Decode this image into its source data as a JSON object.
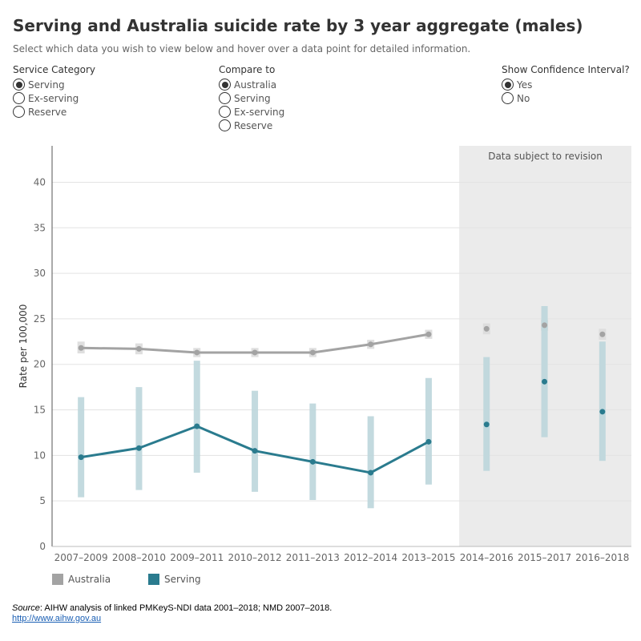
{
  "header": {
    "title": "Serving and Australia suicide rate by 3 year aggregate (males)",
    "subtitle": "Select which data you wish to view below and hover over a data point for detailed information."
  },
  "controls": {
    "service_category": {
      "label": "Service Category",
      "options": [
        {
          "label": "Serving",
          "selected": true
        },
        {
          "label": "Ex-serving",
          "selected": false
        },
        {
          "label": "Reserve",
          "selected": false
        }
      ]
    },
    "compare_to": {
      "label": "Compare to",
      "options": [
        {
          "label": "Australia",
          "selected": true
        },
        {
          "label": "Serving",
          "selected": false
        },
        {
          "label": "Ex-serving",
          "selected": false
        },
        {
          "label": "Reserve",
          "selected": false
        }
      ]
    },
    "confidence_interval": {
      "label": "Show Confidence Interval?",
      "options": [
        {
          "label": "Yes",
          "selected": true
        },
        {
          "label": "No",
          "selected": false
        }
      ]
    }
  },
  "legend": {
    "australia": "Australia",
    "serving": "Serving"
  },
  "colors": {
    "australia": "#a3a3a3",
    "australia_ci": "#dcdcdc",
    "serving": "#2a7b8e",
    "serving_ci": "#bcd6dc",
    "revision_bg": "#ebebeb"
  },
  "source": {
    "label": "Source",
    "text": ": AIHW analysis of linked PMKeyS-NDI data 2001–2018; NMD 2007–2018.",
    "link": "http://www.aihw.gov.au"
  },
  "chart_data": {
    "type": "line",
    "ylabel": "Rate per 100,000",
    "ylim": [
      0,
      44
    ],
    "yticks": [
      0,
      5,
      10,
      15,
      20,
      25,
      30,
      35,
      40
    ],
    "categories": [
      "2007–2009",
      "2008–2010",
      "2009–2011",
      "2010–2012",
      "2011–2013",
      "2012–2014",
      "2013–2015",
      "2014–2016",
      "2015–2017",
      "2016–2018"
    ],
    "revision_annotation": "Data subject to revision",
    "revision_start_category": "2014–2016",
    "series": [
      {
        "name": "Australia",
        "values": [
          21.8,
          21.7,
          21.3,
          21.3,
          21.3,
          22.2,
          23.3,
          23.9,
          24.3,
          23.3
        ],
        "ci_low": [
          21.2,
          21.1,
          20.8,
          20.8,
          20.8,
          21.7,
          22.8,
          23.3,
          23.7,
          22.7
        ],
        "ci_high": [
          22.5,
          22.3,
          21.8,
          21.8,
          21.8,
          22.7,
          23.8,
          24.5,
          24.9,
          23.9
        ]
      },
      {
        "name": "Serving",
        "values": [
          9.8,
          10.8,
          13.2,
          10.5,
          9.3,
          8.1,
          11.5,
          13.4,
          18.1,
          14.8
        ],
        "ci_low": [
          5.4,
          6.2,
          8.1,
          6.0,
          5.1,
          4.2,
          6.8,
          8.3,
          12.0,
          9.4
        ],
        "ci_high": [
          16.4,
          17.5,
          20.4,
          17.1,
          15.7,
          14.3,
          18.5,
          20.8,
          26.4,
          22.5
        ]
      }
    ]
  }
}
